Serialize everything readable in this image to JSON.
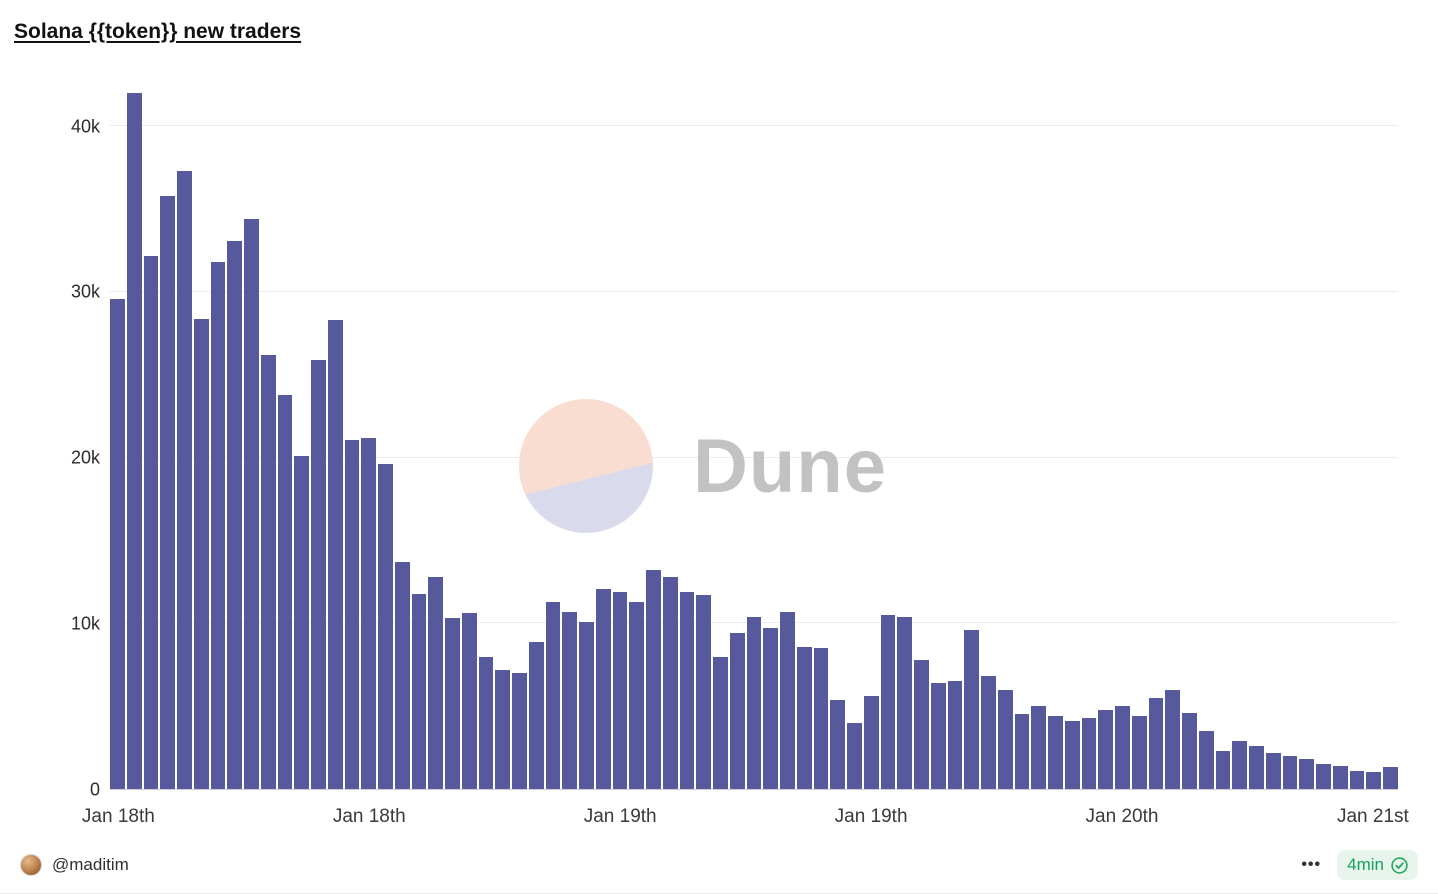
{
  "title": "Solana {{token}} new traders",
  "watermark": {
    "brand": "Dune"
  },
  "footer": {
    "author": "@maditim",
    "more_label": "•••",
    "refresh": "4min"
  },
  "colors": {
    "bar": "#565a9d",
    "gridline": "#ececec",
    "refresh_green": "#13a05d",
    "watermark_peach": "#f9ddd1",
    "watermark_lavender": "#d9dbec"
  },
  "chart_data": {
    "type": "bar",
    "title": "Solana {{token}} new traders",
    "xlabel": "",
    "ylabel": "",
    "ylim": [
      0,
      42200
    ],
    "grid": true,
    "legend": "none",
    "yticks": [
      0,
      10000,
      20000,
      30000,
      40000
    ],
    "ytick_labels": [
      "0",
      "10k",
      "20k",
      "30k",
      "40k"
    ],
    "x_tick_positions": [
      0,
      15,
      30,
      45,
      60,
      75
    ],
    "x_tick_labels": [
      "Jan 18th",
      "Jan 18th",
      "Jan 19th",
      "Jan 19th",
      "Jan 20th",
      "Jan 21st"
    ],
    "bar_color": "#565a9d",
    "values": [
      29600,
      42000,
      32200,
      35800,
      37300,
      28400,
      31800,
      33100,
      34400,
      26200,
      23800,
      20100,
      25900,
      28300,
      21100,
      21200,
      19600,
      13700,
      11800,
      12800,
      10300,
      10600,
      8000,
      7200,
      7000,
      8900,
      11300,
      10700,
      10100,
      12100,
      11900,
      11300,
      13200,
      12800,
      11900,
      11700,
      8000,
      9400,
      10400,
      9700,
      10700,
      8600,
      8500,
      5400,
      4000,
      5600,
      10500,
      10400,
      7800,
      6400,
      6500,
      9600,
      6800,
      6000,
      4500,
      5000,
      4400,
      4100,
      4300,
      4800,
      5000,
      4400,
      5500,
      6000,
      4600,
      3500,
      2300,
      2900,
      2600,
      2200,
      2000,
      1800,
      1500,
      1400,
      1100,
      1000,
      1300
    ]
  }
}
